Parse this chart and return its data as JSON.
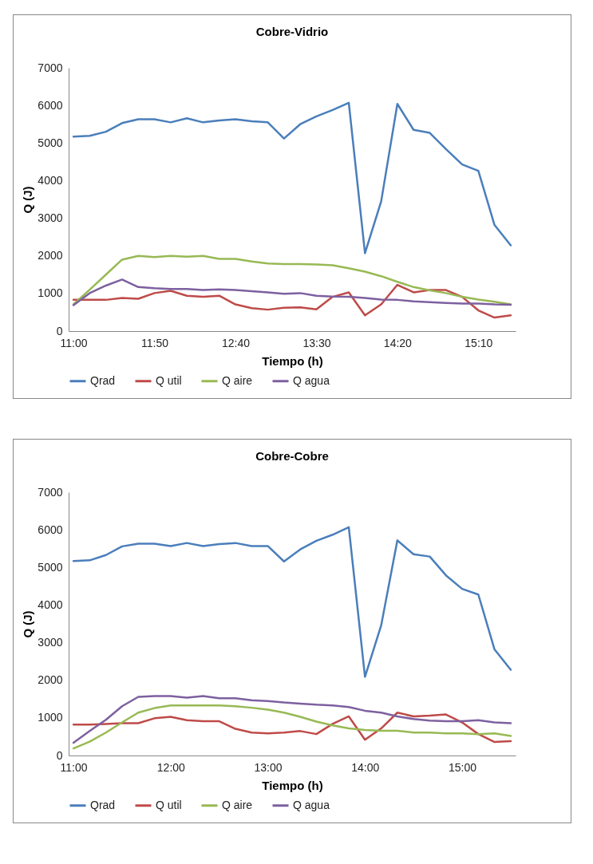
{
  "chart_data": [
    {
      "type": "line",
      "title": "Cobre-Vidrio",
      "xlabel": "Tiempo (h)",
      "ylabel": "Q (J)",
      "legend": "bottom",
      "grid": false,
      "categories": [
        "11:00",
        null,
        null,
        null,
        null,
        "11:50",
        null,
        null,
        null,
        null,
        "12:40",
        null,
        null,
        null,
        null,
        "13:30",
        null,
        null,
        null,
        null,
        "14:20",
        null,
        null,
        null,
        null,
        "15:10",
        null,
        null
      ],
      "ylim": [
        0,
        7000
      ],
      "yticks": [
        0,
        1000,
        2000,
        3000,
        4000,
        5000,
        6000,
        7000
      ],
      "series": [
        {
          "name": "Qrad",
          "color": "#4a7ebb",
          "values": [
            5170,
            5190,
            5300,
            5530,
            5630,
            5630,
            5550,
            5660,
            5550,
            5600,
            5630,
            5580,
            5550,
            5120,
            5500,
            5710,
            5880,
            6070,
            2070,
            3450,
            6040,
            5350,
            5270,
            4840,
            4430,
            4260,
            2820,
            2280
          ]
        },
        {
          "name": "Q util",
          "color": "#be4b48",
          "values": [
            830,
            830,
            830,
            880,
            860,
            1010,
            1070,
            940,
            910,
            940,
            710,
            610,
            570,
            620,
            630,
            580,
            910,
            1030,
            420,
            710,
            1230,
            1030,
            1090,
            1090,
            910,
            550,
            360,
            420
          ]
        },
        {
          "name": "Q aire",
          "color": "#98b954",
          "values": [
            710,
            1100,
            1500,
            1900,
            2000,
            1970,
            2000,
            1980,
            2000,
            1920,
            1920,
            1850,
            1800,
            1780,
            1780,
            1770,
            1750,
            1670,
            1580,
            1460,
            1310,
            1170,
            1080,
            1010,
            910,
            840,
            780,
            710
          ]
        },
        {
          "name": "Q agua",
          "color": "#7d60a0",
          "values": [
            690,
            1010,
            1210,
            1370,
            1170,
            1140,
            1120,
            1120,
            1090,
            1110,
            1090,
            1060,
            1030,
            990,
            1010,
            940,
            920,
            910,
            880,
            840,
            830,
            790,
            770,
            750,
            730,
            730,
            710,
            700
          ]
        }
      ]
    },
    {
      "type": "line",
      "title": "Cobre-Cobre",
      "xlabel": "Tiempo (h)",
      "ylabel": "Q (J)",
      "legend": "bottom",
      "grid": false,
      "categories": [
        "11:00",
        null,
        null,
        null,
        null,
        null,
        "12:00",
        null,
        null,
        null,
        null,
        null,
        "13:00",
        null,
        null,
        null,
        null,
        null,
        "14:00",
        null,
        null,
        null,
        null,
        null,
        "15:00",
        null,
        null,
        null
      ],
      "ylim": [
        0,
        7000
      ],
      "yticks": [
        0,
        1000,
        2000,
        3000,
        4000,
        5000,
        6000,
        7000
      ],
      "series": [
        {
          "name": "Qrad",
          "color": "#4a7ebb",
          "values": [
            5170,
            5190,
            5330,
            5560,
            5630,
            5630,
            5570,
            5650,
            5570,
            5620,
            5650,
            5570,
            5570,
            5160,
            5480,
            5710,
            5870,
            6070,
            2090,
            3460,
            5720,
            5350,
            5290,
            4790,
            4430,
            4280,
            2820,
            2280
          ]
        },
        {
          "name": "Q util",
          "color": "#be4b48",
          "values": [
            820,
            820,
            840,
            860,
            860,
            990,
            1030,
            940,
            910,
            910,
            710,
            610,
            590,
            610,
            650,
            570,
            840,
            1040,
            420,
            720,
            1140,
            1040,
            1060,
            1090,
            880,
            570,
            360,
            380
          ]
        },
        {
          "name": "Q aire",
          "color": "#98b954",
          "values": [
            190,
            370,
            610,
            880,
            1140,
            1260,
            1330,
            1330,
            1330,
            1330,
            1310,
            1270,
            1220,
            1140,
            1030,
            900,
            800,
            720,
            680,
            660,
            660,
            610,
            610,
            590,
            590,
            570,
            590,
            520
          ]
        },
        {
          "name": "Q agua",
          "color": "#7d60a0",
          "values": [
            340,
            650,
            950,
            1310,
            1560,
            1580,
            1580,
            1540,
            1580,
            1520,
            1520,
            1470,
            1450,
            1410,
            1380,
            1350,
            1330,
            1290,
            1190,
            1140,
            1040,
            970,
            930,
            910,
            910,
            940,
            880,
            860
          ]
        }
      ]
    }
  ]
}
